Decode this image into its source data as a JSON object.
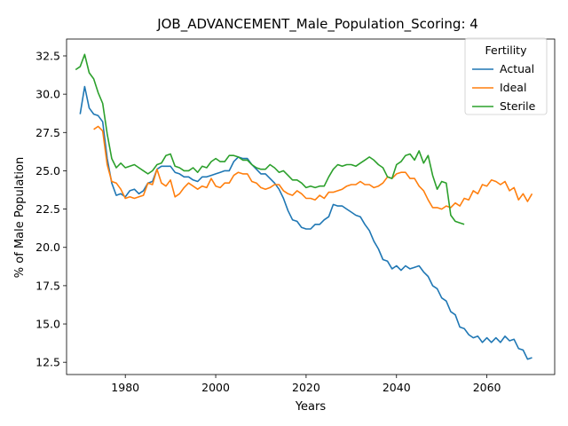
{
  "chart_data": {
    "type": "line",
    "title": "JOB_ADVANCEMENT_Male_Population_Scoring: 4",
    "xlabel": "Years",
    "ylabel": "% of Male Population",
    "xlim": [
      1967,
      2075
    ],
    "ylim": [
      11.7,
      33.6
    ],
    "xticks": [
      1980,
      2000,
      2020,
      2040,
      2060
    ],
    "yticks": [
      12.5,
      15.0,
      17.5,
      20.0,
      22.5,
      25.0,
      27.5,
      30.0,
      32.5
    ],
    "ytick_labels": [
      "12.5",
      "15.0",
      "17.5",
      "20.0",
      "22.5",
      "25.0",
      "27.5",
      "30.0",
      "32.5"
    ],
    "grid": false,
    "legend": {
      "title": "Fertility",
      "placement": "top-right"
    },
    "series": [
      {
        "name": "Actual",
        "color": "#1f77b4",
        "x": [
          1970,
          1971,
          1972,
          1973,
          1974,
          1975,
          1976,
          1977,
          1978,
          1979,
          1980,
          1981,
          1982,
          1983,
          1984,
          1985,
          1986,
          1987,
          1988,
          1989,
          1990,
          1991,
          1992,
          1993,
          1994,
          1995,
          1996,
          1997,
          1998,
          1999,
          2000,
          2001,
          2002,
          2003,
          2004,
          2005,
          2006,
          2007,
          2008,
          2009,
          2010,
          2011,
          2012,
          2013,
          2014,
          2015,
          2016,
          2017,
          2018,
          2019,
          2020,
          2021,
          2022,
          2023,
          2024,
          2025,
          2026,
          2027,
          2028,
          2029,
          2030,
          2031,
          2032,
          2033,
          2034,
          2035,
          2036,
          2037,
          2038,
          2039,
          2040,
          2041,
          2042,
          2043,
          2044,
          2045,
          2046,
          2047,
          2048,
          2049,
          2050,
          2051,
          2052,
          2053,
          2054,
          2055,
          2056,
          2057,
          2058,
          2059,
          2060,
          2061,
          2062,
          2063,
          2064,
          2065,
          2066,
          2067,
          2068,
          2069,
          2070
        ],
        "values": [
          28.7,
          30.5,
          29.1,
          28.7,
          28.6,
          28.2,
          25.8,
          24.2,
          23.4,
          23.5,
          23.3,
          23.7,
          23.8,
          23.5,
          23.7,
          24.2,
          24.3,
          25.1,
          25.3,
          25.3,
          25.3,
          24.9,
          24.8,
          24.6,
          24.6,
          24.4,
          24.3,
          24.6,
          24.6,
          24.7,
          24.8,
          24.9,
          25.0,
          25.0,
          25.6,
          25.9,
          25.8,
          25.8,
          25.4,
          25.1,
          24.8,
          24.8,
          24.5,
          24.2,
          23.8,
          23.2,
          22.4,
          21.8,
          21.7,
          21.3,
          21.2,
          21.2,
          21.5,
          21.5,
          21.8,
          22.0,
          22.8,
          22.7,
          22.7,
          22.5,
          22.3,
          22.1,
          22.0,
          21.5,
          21.1,
          20.4,
          19.9,
          19.2,
          19.1,
          18.6,
          18.8,
          18.5,
          18.8,
          18.6,
          18.7,
          18.8,
          18.4,
          18.1,
          17.5,
          17.3,
          16.7,
          16.5,
          15.8,
          15.6,
          14.8,
          14.7,
          14.3,
          14.1,
          14.2,
          13.8,
          14.1,
          13.8,
          14.1,
          13.8,
          14.2,
          13.9,
          14.0,
          13.4,
          13.3,
          12.7,
          12.8
        ]
      },
      {
        "name": "Ideal",
        "color": "#ff7f0e",
        "x": [
          1973,
          1974,
          1975,
          1976,
          1977,
          1978,
          1979,
          1980,
          1981,
          1982,
          1983,
          1984,
          1985,
          1986,
          1987,
          1988,
          1989,
          1990,
          1991,
          1992,
          1993,
          1994,
          1995,
          1996,
          1997,
          1998,
          1999,
          2000,
          2001,
          2002,
          2003,
          2004,
          2005,
          2006,
          2007,
          2008,
          2009,
          2010,
          2011,
          2012,
          2013,
          2014,
          2015,
          2016,
          2017,
          2018,
          2019,
          2020,
          2021,
          2022,
          2023,
          2024,
          2025,
          2026,
          2027,
          2028,
          2029,
          2030,
          2031,
          2032,
          2033,
          2034,
          2035,
          2036,
          2037,
          2038,
          2039,
          2040,
          2041,
          2042,
          2043,
          2044,
          2045,
          2046,
          2047,
          2048,
          2049,
          2050,
          2051,
          2052,
          2053,
          2054,
          2055,
          2056,
          2057,
          2058,
          2059,
          2060,
          2061,
          2062,
          2063,
          2064,
          2065,
          2066,
          2067,
          2068,
          2069,
          2070
        ],
        "values": [
          27.7,
          27.9,
          27.6,
          25.4,
          24.3,
          24.2,
          23.8,
          23.2,
          23.3,
          23.2,
          23.3,
          23.4,
          24.2,
          24.1,
          25.1,
          24.2,
          24.0,
          24.4,
          23.3,
          23.5,
          23.9,
          24.2,
          24.0,
          23.8,
          24.0,
          23.9,
          24.5,
          24.0,
          23.9,
          24.2,
          24.2,
          24.7,
          24.9,
          24.8,
          24.8,
          24.3,
          24.2,
          23.9,
          23.8,
          23.9,
          24.1,
          24.1,
          23.7,
          23.5,
          23.4,
          23.7,
          23.5,
          23.2,
          23.2,
          23.1,
          23.4,
          23.2,
          23.6,
          23.6,
          23.7,
          23.8,
          24.0,
          24.1,
          24.1,
          24.3,
          24.1,
          24.1,
          23.9,
          24.0,
          24.2,
          24.6,
          24.5,
          24.8,
          24.9,
          24.9,
          24.5,
          24.5,
          24.0,
          23.7,
          23.1,
          22.6,
          22.6,
          22.5,
          22.7,
          22.6,
          22.9,
          22.7,
          23.2,
          23.1,
          23.7,
          23.5,
          24.1,
          24.0,
          24.4,
          24.3,
          24.1,
          24.3,
          23.7,
          23.9,
          23.1,
          23.5,
          23.0,
          23.5
        ]
      },
      {
        "name": "Sterile",
        "color": "#2ca02c",
        "x": [
          1969,
          1970,
          1971,
          1972,
          1973,
          1974,
          1975,
          1976,
          1977,
          1978,
          1979,
          1980,
          1981,
          1982,
          1983,
          1984,
          1985,
          1986,
          1987,
          1988,
          1989,
          1990,
          1991,
          1992,
          1993,
          1994,
          1995,
          1996,
          1997,
          1998,
          1999,
          2000,
          2001,
          2002,
          2003,
          2004,
          2005,
          2006,
          2007,
          2008,
          2009,
          2010,
          2011,
          2012,
          2013,
          2014,
          2015,
          2016,
          2017,
          2018,
          2019,
          2020,
          2021,
          2022,
          2023,
          2024,
          2025,
          2026,
          2027,
          2028,
          2029,
          2030,
          2031,
          2032,
          2033,
          2034,
          2035,
          2036,
          2037,
          2038,
          2039,
          2040,
          2041,
          2042,
          2043,
          2044,
          2045,
          2046,
          2047,
          2048,
          2049,
          2050,
          2051,
          2052,
          2053,
          2054,
          2055
        ],
        "values": [
          31.6,
          31.8,
          32.6,
          31.4,
          31.0,
          30.1,
          29.4,
          27.4,
          25.8,
          25.2,
          25.5,
          25.2,
          25.3,
          25.4,
          25.2,
          25.0,
          24.8,
          25.0,
          25.4,
          25.5,
          26.0,
          26.1,
          25.3,
          25.2,
          25.0,
          25.0,
          25.2,
          24.9,
          25.3,
          25.2,
          25.6,
          25.8,
          25.6,
          25.6,
          26.0,
          26.0,
          25.9,
          25.7,
          25.7,
          25.4,
          25.2,
          25.1,
          25.1,
          25.4,
          25.2,
          24.9,
          25.0,
          24.7,
          24.4,
          24.4,
          24.2,
          23.9,
          24.0,
          23.9,
          24.0,
          24.0,
          24.6,
          25.1,
          25.4,
          25.3,
          25.4,
          25.4,
          25.3,
          25.5,
          25.7,
          25.9,
          25.7,
          25.4,
          25.2,
          24.6,
          24.5,
          25.4,
          25.6,
          26.0,
          26.1,
          25.7,
          26.3,
          25.5,
          26.0,
          24.7,
          23.8,
          24.3,
          24.2,
          22.1,
          21.7,
          21.6,
          21.5
        ]
      }
    ]
  }
}
